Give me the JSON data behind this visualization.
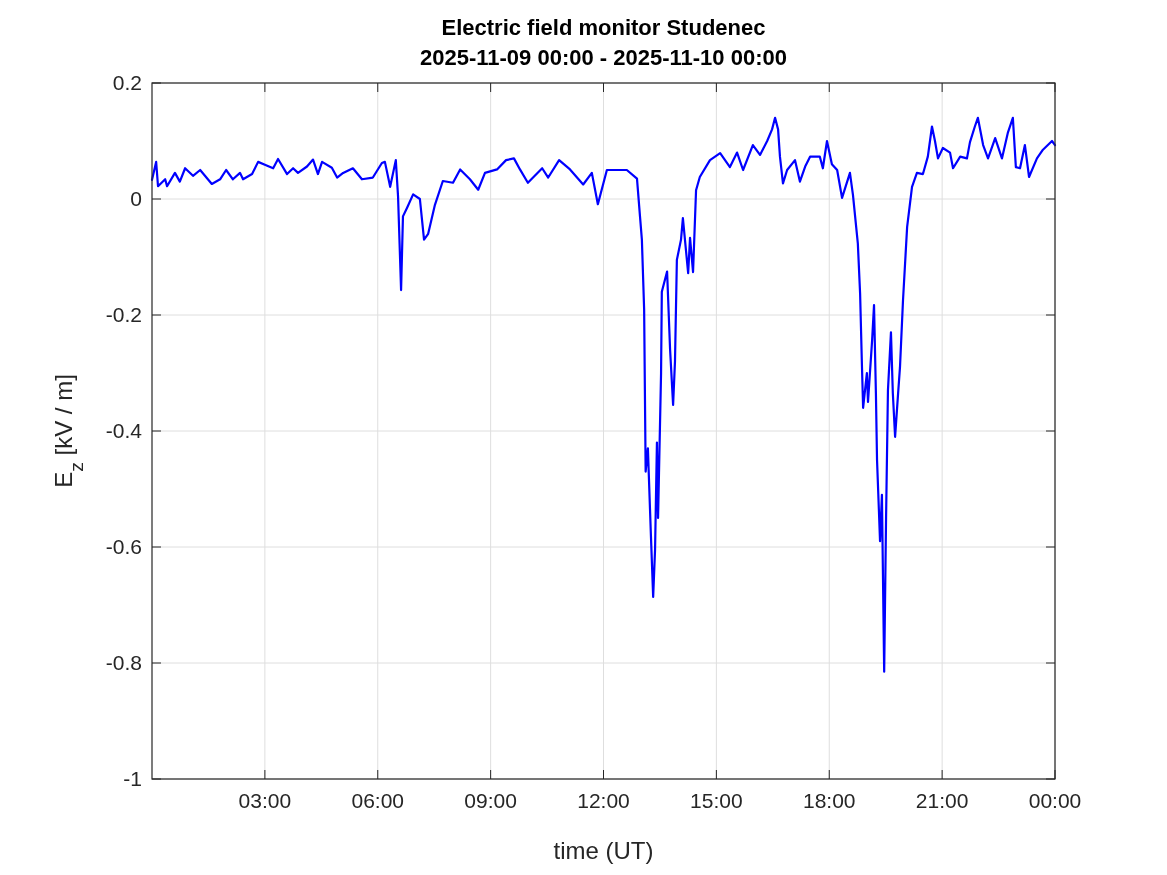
{
  "chart_data": {
    "type": "line",
    "title": "Electric field monitor Studenec\n2025-11-09 00:00 - 2025-11-10 00:00",
    "xlabel": "time (UT)",
    "ylabel": "E$_{z}$ [kV / m]",
    "xlim": [
      0,
      24
    ],
    "xticks": [
      {
        "value": 3,
        "label": "03:00"
      },
      {
        "value": 6,
        "label": "06:00"
      },
      {
        "value": 9,
        "label": "09:00"
      },
      {
        "value": 12,
        "label": "12:00"
      },
      {
        "value": 15,
        "label": "15:00"
      },
      {
        "value": 18,
        "label": "18:00"
      },
      {
        "value": 21,
        "label": "21:00"
      },
      {
        "value": 24,
        "label": "00:00"
      }
    ],
    "ylim": [
      -1,
      0.2
    ],
    "yticks": [
      -1,
      -0.8,
      -0.6,
      -0.4,
      -0.2,
      0,
      0.2
    ],
    "grid": true,
    "series": [
      {
        "color": "#0000ff",
        "x": [
          0,
          0.11,
          0.16,
          0.35,
          0.4,
          0.61,
          0.74,
          0.88,
          1.09,
          1.28,
          1.59,
          1.81,
          1.97,
          2.15,
          2.34,
          2.42,
          2.66,
          2.82,
          3.0,
          3.22,
          3.35,
          3.59,
          3.75,
          3.88,
          4.12,
          4.28,
          4.41,
          4.52,
          4.78,
          4.92,
          5.08,
          5.34,
          5.58,
          5.87,
          6.11,
          6.19,
          6.33,
          6.48,
          6.54,
          6.62,
          6.67,
          6.78,
          6.94,
          7.12,
          7.23,
          7.34,
          7.52,
          7.73,
          8.0,
          8.19,
          8.45,
          8.67,
          8.85,
          9.17,
          9.41,
          9.62,
          9.78,
          9.99,
          10.37,
          10.53,
          10.82,
          11.11,
          11.46,
          11.69,
          11.85,
          12.09,
          12.62,
          12.89,
          12.97,
          13.02,
          13.08,
          13.1,
          13.12,
          13.18,
          13.26,
          13.32,
          13.37,
          13.42,
          13.45,
          13.53,
          13.55,
          13.69,
          13.77,
          13.85,
          13.9,
          13.95,
          14.06,
          14.11,
          14.25,
          14.3,
          14.38,
          14.46,
          14.56,
          14.83,
          15.1,
          15.36,
          15.55,
          15.71,
          15.97,
          16.16,
          16.35,
          16.48,
          16.56,
          16.64,
          16.69,
          16.77,
          16.88,
          17.09,
          17.22,
          17.36,
          17.49,
          17.75,
          17.83,
          17.94,
          18.07,
          18.21,
          18.34,
          18.55,
          18.63,
          18.76,
          18.82,
          18.87,
          18.9,
          19.0,
          19.03,
          19.14,
          19.19,
          19.24,
          19.27,
          19.35,
          19.4,
          19.46,
          19.51,
          19.56,
          19.64,
          19.69,
          19.75,
          19.83,
          19.88,
          19.96,
          20.07,
          20.2,
          20.33,
          20.49,
          20.62,
          20.73,
          20.81,
          20.89,
          21.02,
          21.21,
          21.29,
          21.48,
          21.66,
          21.74,
          21.87,
          21.95,
          22.09,
          22.22,
          22.41,
          22.59,
          22.75,
          22.88,
          22.96,
          23.07,
          23.2,
          23.31,
          23.52,
          23.68,
          23.92,
          24
        ],
        "values": [
          0.033,
          0.064,
          0.022,
          0.034,
          0.022,
          0.045,
          0.03,
          0.053,
          0.04,
          0.05,
          0.026,
          0.034,
          0.05,
          0.034,
          0.045,
          0.034,
          0.043,
          0.064,
          0.059,
          0.053,
          0.069,
          0.043,
          0.053,
          0.045,
          0.056,
          0.068,
          0.043,
          0.064,
          0.054,
          0.037,
          0.045,
          0.053,
          0.034,
          0.037,
          0.062,
          0.064,
          0.021,
          0.067,
          0.004,
          -0.157,
          -0.03,
          -0.015,
          0.008,
          0.0,
          -0.07,
          -0.06,
          -0.01,
          0.031,
          0.028,
          0.051,
          0.034,
          0.016,
          0.045,
          0.051,
          0.067,
          0.07,
          0.051,
          0.028,
          0.053,
          0.037,
          0.067,
          0.051,
          0.025,
          0.045,
          -0.009,
          0.05,
          0.05,
          0.035,
          -0.03,
          -0.07,
          -0.19,
          -0.33,
          -0.47,
          -0.43,
          -0.58,
          -0.686,
          -0.605,
          -0.42,
          -0.55,
          -0.3,
          -0.16,
          -0.125,
          -0.26,
          -0.355,
          -0.28,
          -0.105,
          -0.07,
          -0.033,
          -0.128,
          -0.067,
          -0.126,
          0.015,
          0.038,
          0.067,
          0.079,
          0.055,
          0.08,
          0.05,
          0.093,
          0.076,
          0.1,
          0.12,
          0.14,
          0.12,
          0.073,
          0.027,
          0.05,
          0.067,
          0.03,
          0.056,
          0.073,
          0.073,
          0.053,
          0.1,
          0.06,
          0.05,
          0.002,
          0.045,
          0.007,
          -0.077,
          -0.163,
          -0.29,
          -0.36,
          -0.3,
          -0.35,
          -0.243,
          -0.183,
          -0.335,
          -0.45,
          -0.59,
          -0.51,
          -0.815,
          -0.55,
          -0.33,
          -0.23,
          -0.335,
          -0.41,
          -0.335,
          -0.29,
          -0.175,
          -0.048,
          0.021,
          0.045,
          0.043,
          0.073,
          0.125,
          0.1,
          0.07,
          0.088,
          0.08,
          0.053,
          0.073,
          0.07,
          0.098,
          0.125,
          0.14,
          0.093,
          0.07,
          0.105,
          0.07,
          0.115,
          0.14,
          0.055,
          0.053,
          0.093,
          0.038,
          0.07,
          0.085,
          0.1,
          0.093
        ]
      }
    ]
  }
}
